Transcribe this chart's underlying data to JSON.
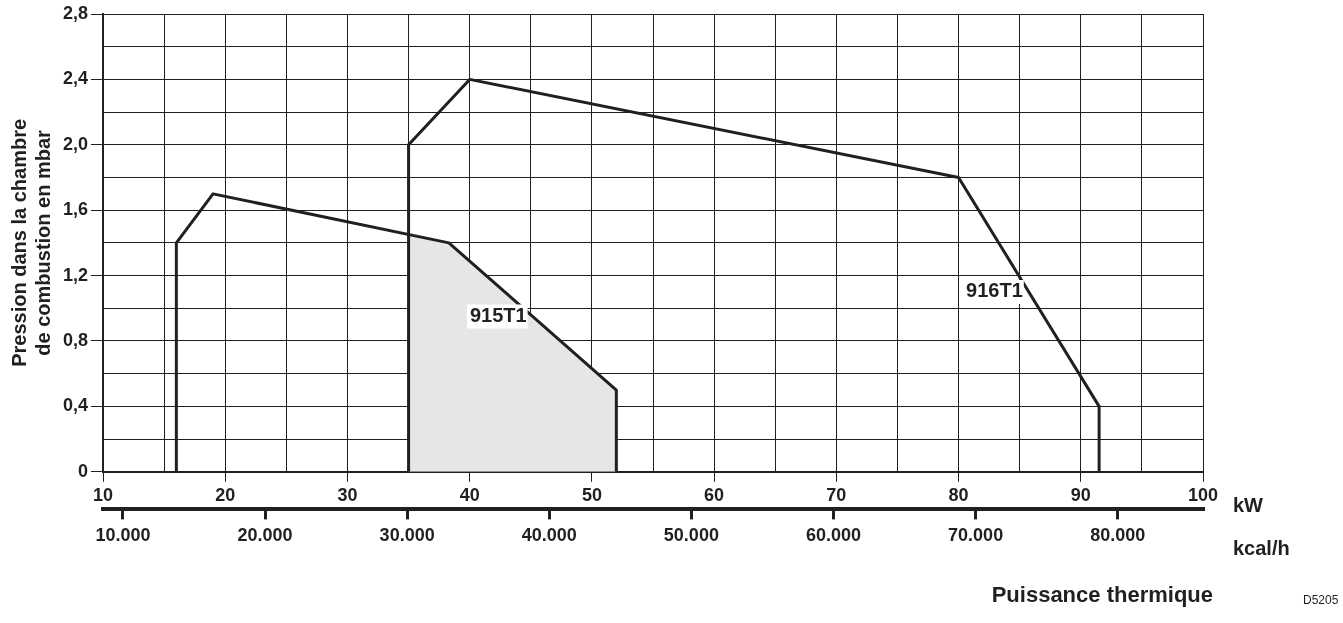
{
  "chart_data": {
    "type": "line",
    "xlabel": "kW",
    "x2label": "kcal/h",
    "ylabel": "Pression dans la chambre de combustion en mbar",
    "xlim": [
      10,
      100
    ],
    "xticks": [
      10,
      {
        "value": 15,
        "label": null
      },
      20,
      {
        "value": 25,
        "label": null
      },
      30,
      {
        "value": 35,
        "label": null
      },
      40,
      {
        "value": 45,
        "label": null
      },
      50,
      {
        "value": 55,
        "label": null
      },
      60,
      {
        "value": 65,
        "label": null
      },
      70,
      {
        "value": 75,
        "label": null
      },
      80,
      {
        "value": 85,
        "label": null
      },
      90,
      {
        "value": 95,
        "label": null
      },
      100
    ],
    "x2lim": [
      8600,
      86000
    ],
    "x2ticks": [
      {
        "value": 10000,
        "label": "10.000"
      },
      {
        "value": 20000,
        "label": "20.000"
      },
      {
        "value": 30000,
        "label": "30.000"
      },
      {
        "value": 40000,
        "label": "40.000"
      },
      {
        "value": 50000,
        "label": "50.000"
      },
      {
        "value": 60000,
        "label": "60.000"
      },
      {
        "value": 70000,
        "label": "70.000"
      },
      {
        "value": 80000,
        "label": "80.000"
      }
    ],
    "ylim": [
      0,
      2.8
    ],
    "yticks": [
      0,
      {
        "value": 0.2,
        "label": null
      },
      {
        "value": 0.4,
        "label": "0,4"
      },
      {
        "value": 0.6,
        "label": null
      },
      {
        "value": 0.8,
        "label": "0,8"
      },
      {
        "value": 1.0,
        "label": null
      },
      {
        "value": 1.2,
        "label": "1,2"
      },
      {
        "value": 1.4,
        "label": null
      },
      {
        "value": 1.6,
        "label": "1,6"
      },
      {
        "value": 1.8,
        "label": null
      },
      {
        "value": 2.0,
        "label": "2,0"
      },
      {
        "value": 2.2,
        "label": null
      },
      {
        "value": 2.4,
        "label": "2,4"
      },
      {
        "value": 2.6,
        "label": null
      },
      {
        "value": 2.8,
        "label": "2,8"
      }
    ],
    "grid": true,
    "legend": false,
    "marker": "none",
    "line_style": "solid",
    "series": [
      {
        "type": "area",
        "color": "#e6e6e6",
        "x": [
          35,
          38.3,
          52
        ],
        "values": [
          1.45,
          1.4,
          0.5
        ]
      },
      {
        "name": "915T1",
        "color": "#231f20",
        "x": [
          16,
          16,
          19,
          38.3,
          52,
          52
        ],
        "values": [
          0,
          1.4,
          1.7,
          1.4,
          0.5,
          0
        ]
      },
      {
        "name": "916T1",
        "color": "#231f20",
        "x": [
          35,
          35,
          40,
          80,
          91.5,
          91.5
        ],
        "values": [
          0,
          2.0,
          2.4,
          1.8,
          0.4,
          0
        ]
      }
    ],
    "annotations": [
      "Puissance thermique",
      "D5205"
    ]
  }
}
